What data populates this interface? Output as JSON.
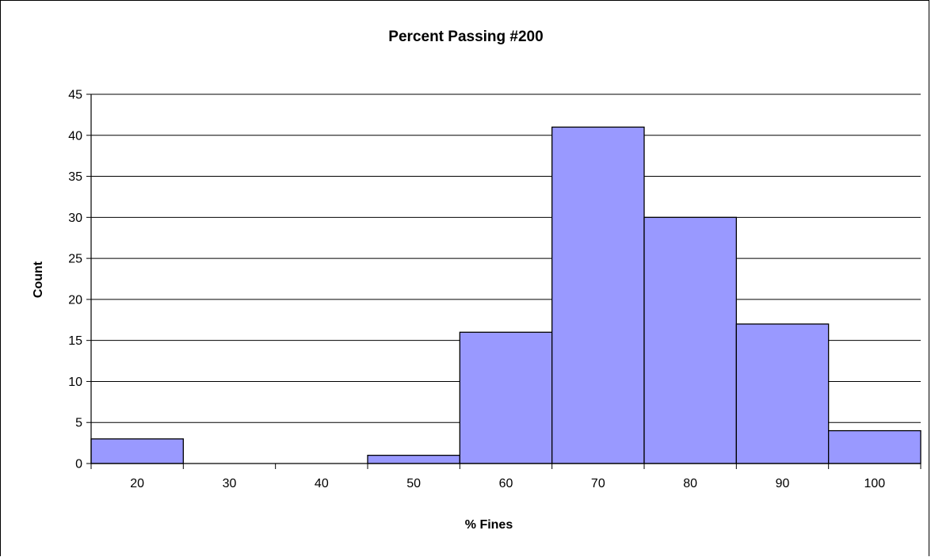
{
  "chart_data": {
    "type": "bar",
    "title": "Percent Passing #200",
    "xlabel": "% Fines",
    "ylabel": "Count",
    "categories": [
      "20",
      "30",
      "40",
      "50",
      "60",
      "70",
      "80",
      "90",
      "100"
    ],
    "values": [
      3,
      0,
      0,
      1,
      16,
      41,
      30,
      17,
      4
    ],
    "ylim": [
      0,
      45
    ],
    "yticks": [
      0,
      5,
      10,
      15,
      20,
      25,
      30,
      35,
      40,
      45
    ],
    "grid": true,
    "legend": "none",
    "bar_color": "#9999FF",
    "bar_edge_color": "#000000"
  }
}
